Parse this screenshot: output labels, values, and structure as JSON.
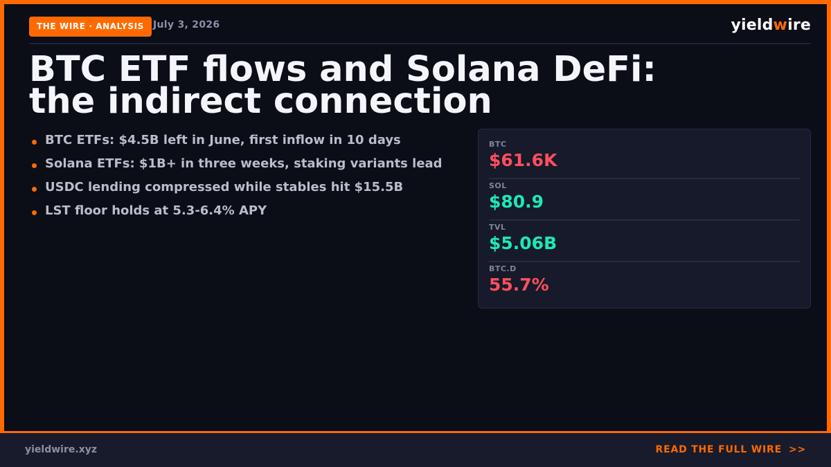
{
  "header": {
    "badge": "THE WIRE · ANALYSIS",
    "date": "July 3, 2026",
    "brand_prefix": "yield",
    "brand_accent": "w",
    "brand_suffix": "ire"
  },
  "headline": {
    "line1": "BTC ETF flows and Solana DeFi:",
    "line2": "the indirect connection"
  },
  "bullets": [
    "BTC ETFs: $4.5B left in June, first inflow in 10 days",
    "Solana ETFs: $1B+ in three weeks, staking variants lead",
    "USDC lending compressed while stables hit $15.5B",
    "LST floor holds at 5.3-6.4% APY"
  ],
  "ticker": [
    {
      "label": "BTC",
      "value": "$61.6K",
      "trend": "down"
    },
    {
      "label": "SOL",
      "value": "$80.9",
      "trend": "up"
    },
    {
      "label": "TVL",
      "value": "$5.06B",
      "trend": "up"
    },
    {
      "label": "BTC.D",
      "value": "55.7%",
      "trend": "down"
    }
  ],
  "footer": {
    "url": "yieldwire.xyz",
    "cta": "READ THE FULL WIRE",
    "cta_arrows": ">>"
  },
  "colors": {
    "accent": "#ff6a00",
    "background": "#0b0d17",
    "positive": "#1de9b6",
    "negative": "#ff4f5e"
  }
}
